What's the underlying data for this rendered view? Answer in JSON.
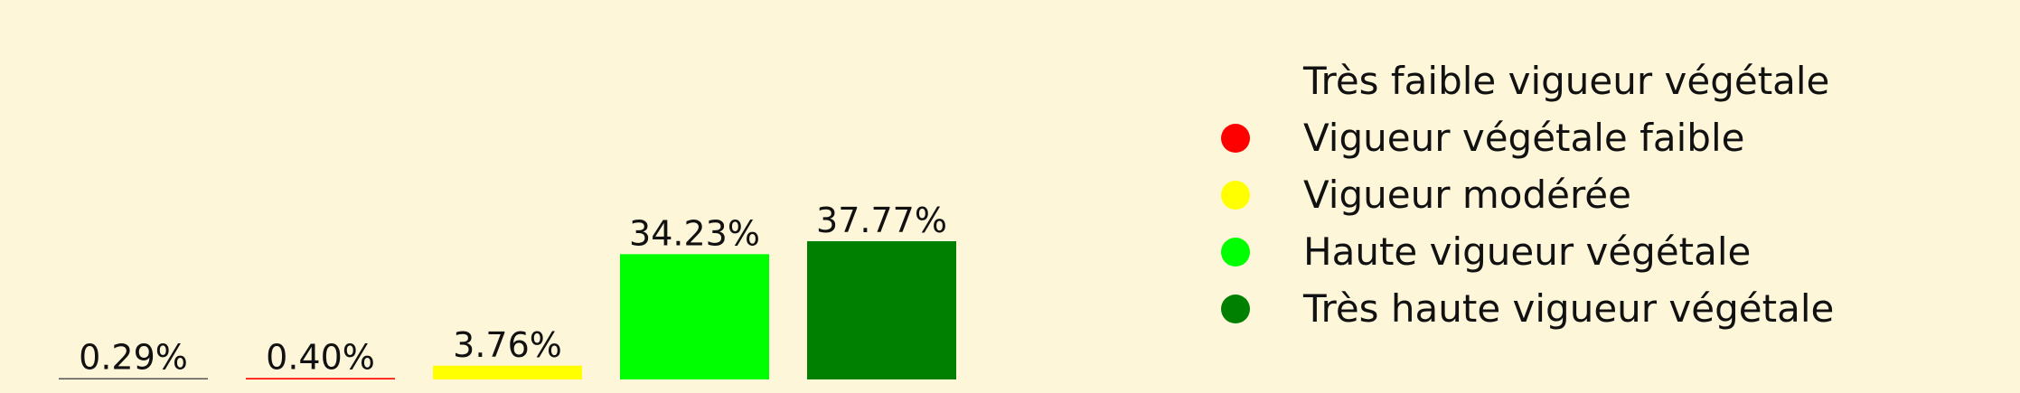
{
  "chart_data": {
    "type": "bar",
    "categories": [
      "Très faible vigueur végétale",
      "Vigueur végétale faible",
      "Vigueur modérée",
      "Haute vigueur végétale",
      "Très haute vigueur végétale"
    ],
    "values": [
      0.29,
      0.4,
      3.76,
      34.23,
      37.77
    ],
    "value_labels": [
      "0.29%",
      "0.40%",
      "3.76%",
      "34.23%",
      "37.77%"
    ],
    "colors": [
      "#555555",
      "#ff0000",
      "#ffff00",
      "#00ff00",
      "#008000"
    ],
    "ylim": [
      0,
      37.77
    ],
    "legend_position": "right",
    "grid": false
  },
  "legend": {
    "items": [
      {
        "label": "Très faible vigueur végétale",
        "color": "#fdf6d9"
      },
      {
        "label": "Vigueur végétale faible",
        "color": "#ff0000"
      },
      {
        "label": "Vigueur modérée",
        "color": "#ffff00"
      },
      {
        "label": "Haute vigueur végétale",
        "color": "#00ff00"
      },
      {
        "label": "Très haute vigueur végétale",
        "color": "#008000"
      }
    ]
  },
  "background_color": "#fdf6d9"
}
